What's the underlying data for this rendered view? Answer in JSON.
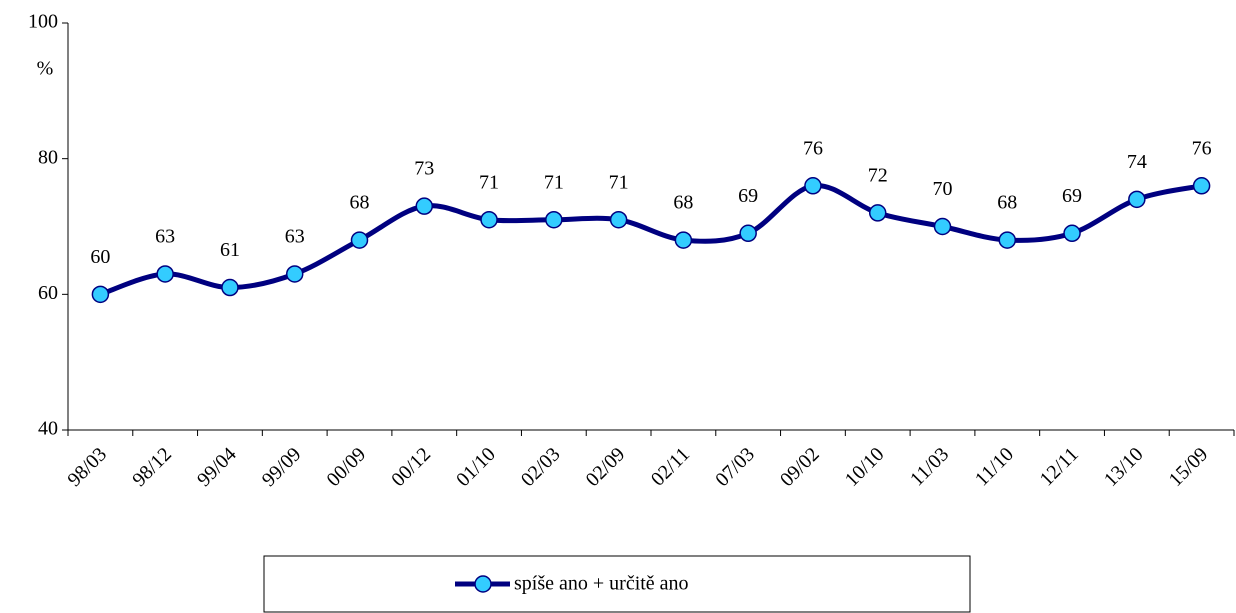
{
  "chart_data": {
    "type": "line",
    "y_axis_label": "%",
    "categories": [
      "98/03",
      "98/12",
      "99/04",
      "99/09",
      "00/09",
      "00/12",
      "01/10",
      "02/03",
      "02/09",
      "02/11",
      "07/03",
      "09/02",
      "10/10",
      "11/03",
      "11/10",
      "12/11",
      "13/10",
      "15/09"
    ],
    "series": [
      {
        "name": "spíše ano + určitě ano",
        "color": "#000080",
        "marker_color": "#33ccff",
        "values": [
          60,
          63,
          61,
          63,
          68,
          73,
          71,
          71,
          71,
          68,
          69,
          76,
          72,
          70,
          68,
          69,
          74,
          76
        ]
      }
    ],
    "ylim": [
      40,
      100
    ],
    "yticks": [
      40,
      60,
      80,
      100
    ],
    "grid": false,
    "legend": "bottom"
  }
}
